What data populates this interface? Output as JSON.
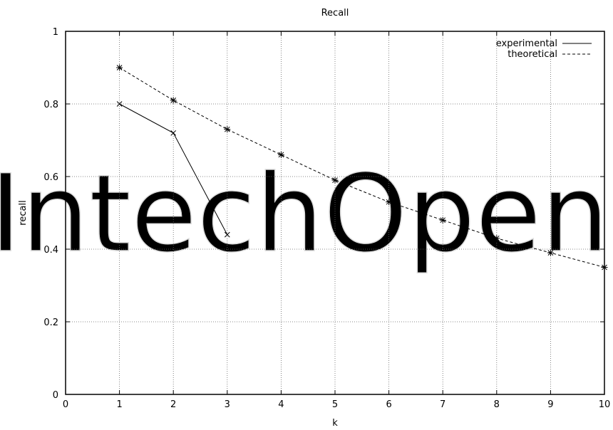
{
  "chart_data": {
    "type": "line",
    "title": "Recall",
    "xlabel": "k",
    "ylabel": "recall",
    "xlim": [
      0,
      10
    ],
    "ylim": [
      0,
      1
    ],
    "xticks": [
      "0",
      "1",
      "2",
      "3",
      "4",
      "5",
      "6",
      "7",
      "8",
      "9",
      "10"
    ],
    "yticks": [
      "0",
      "0.2",
      "0.4",
      "0.6",
      "0.8",
      "1"
    ],
    "grid": true,
    "legend_position": "top-right",
    "series": [
      {
        "name": "experimental",
        "line_style": "solid",
        "marker": "x",
        "x": [
          1,
          2,
          3
        ],
        "y": [
          0.8,
          0.72,
          0.44
        ]
      },
      {
        "name": "theoretical",
        "line_style": "dashed",
        "marker": "star",
        "x": [
          1,
          2,
          3,
          4,
          5,
          6,
          7,
          8,
          9,
          10
        ],
        "y": [
          0.9,
          0.81,
          0.73,
          0.66,
          0.59,
          0.53,
          0.48,
          0.43,
          0.39,
          0.35
        ]
      }
    ],
    "watermark": "IntechOpen"
  }
}
